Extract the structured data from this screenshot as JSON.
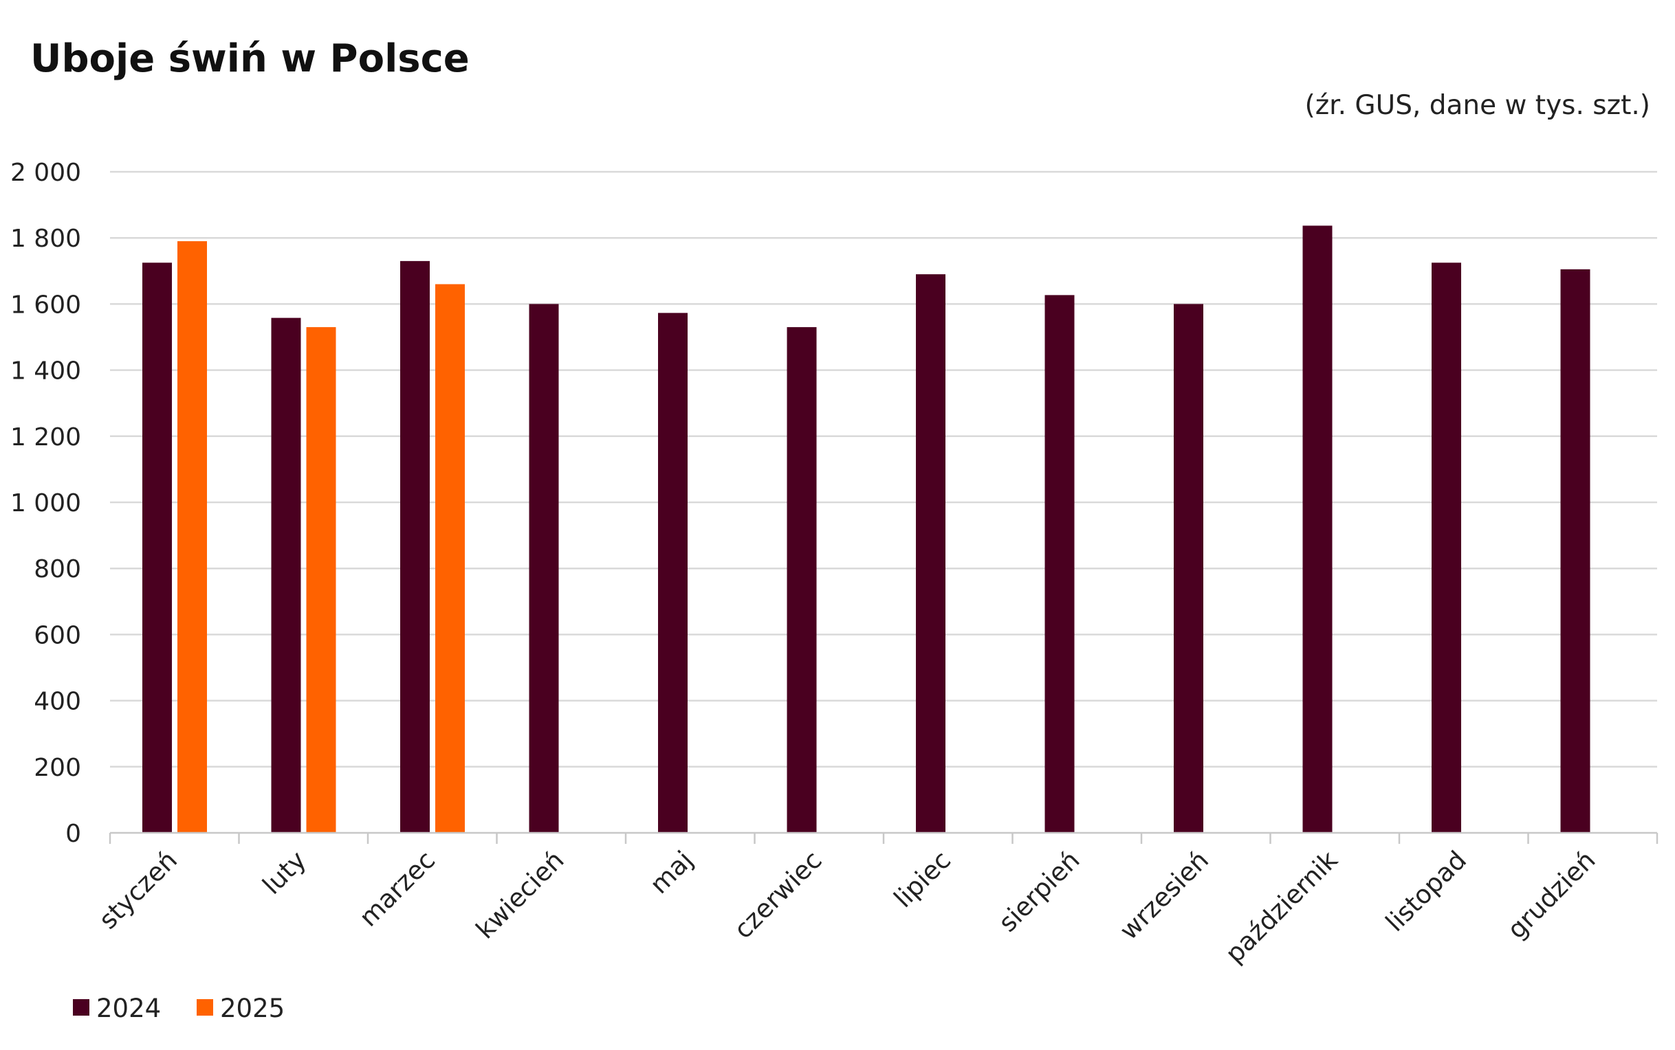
{
  "chart_data": {
    "type": "bar",
    "title": "Uboje świń w Polsce",
    "subtitle": "(źr. GUS, dane w tys. szt.)",
    "xlabel": "",
    "ylabel": "",
    "ylim": [
      0,
      2000
    ],
    "yticks": [
      0,
      200,
      400,
      600,
      800,
      1000,
      1200,
      1400,
      1600,
      1800,
      2000
    ],
    "ytick_labels": [
      "0",
      "200",
      "400",
      "600",
      "800",
      "1 000",
      "1 200",
      "1 400",
      "1 600",
      "1 800",
      "2 000"
    ],
    "grid": true,
    "legend_position": "bottom-left",
    "categories": [
      "styczeń",
      "luty",
      "marzec",
      "kwiecień",
      "maj",
      "czerwiec",
      "lipiec",
      "sierpień",
      "wrzesień",
      "październik",
      "listopad",
      "grudzień"
    ],
    "series": [
      {
        "name": "2024",
        "color": "#4a0020",
        "values": [
          1725,
          1558,
          1730,
          1600,
          1573,
          1530,
          1690,
          1627,
          1600,
          1837,
          1725,
          1705
        ]
      },
      {
        "name": "2025",
        "color": "#ff6200",
        "values": [
          1790,
          1530,
          1660,
          null,
          null,
          null,
          null,
          null,
          null,
          null,
          null,
          null
        ]
      }
    ]
  }
}
